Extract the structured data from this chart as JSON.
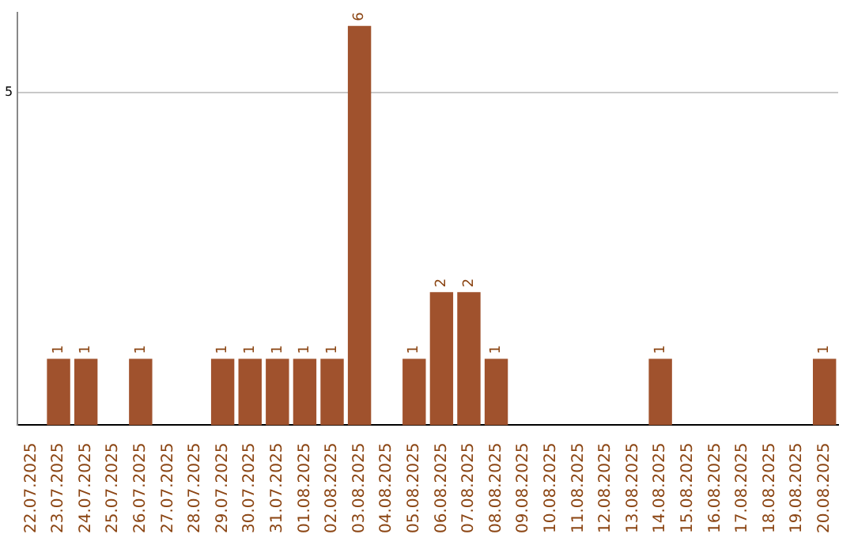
{
  "chart_data": {
    "type": "bar",
    "categories": [
      "22.07.2025",
      "23.07.2025",
      "24.07.2025",
      "25.07.2025",
      "26.07.2025",
      "27.07.2025",
      "28.07.2025",
      "29.07.2025",
      "30.07.2025",
      "31.07.2025",
      "01.08.2025",
      "02.08.2025",
      "03.08.2025",
      "04.08.2025",
      "05.08.2025",
      "06.08.2025",
      "07.08.2025",
      "08.08.2025",
      "09.08.2025",
      "10.08.2025",
      "11.08.2025",
      "12.08.2025",
      "13.08.2025",
      "14.08.2025",
      "15.08.2025",
      "16.08.2025",
      "17.08.2025",
      "18.08.2025",
      "19.08.2025",
      "20.08.2025"
    ],
    "values": [
      0,
      1,
      1,
      0,
      1,
      0,
      0,
      1,
      1,
      1,
      1,
      1,
      6,
      0,
      1,
      2,
      2,
      1,
      0,
      0,
      0,
      0,
      0,
      1,
      0,
      0,
      0,
      0,
      0,
      1
    ],
    "value_labels": [
      null,
      "1",
      "1",
      null,
      "1",
      null,
      null,
      "1",
      "1",
      "1",
      "1",
      "1",
      "6",
      null,
      "1",
      "2",
      "2",
      "1",
      null,
      null,
      null,
      null,
      null,
      "1",
      null,
      null,
      null,
      null,
      null,
      "1"
    ],
    "color": "#a0522d",
    "ylim": [
      0,
      6.2
    ],
    "yticks": [
      5
    ],
    "grid": "y",
    "legend": false
  }
}
